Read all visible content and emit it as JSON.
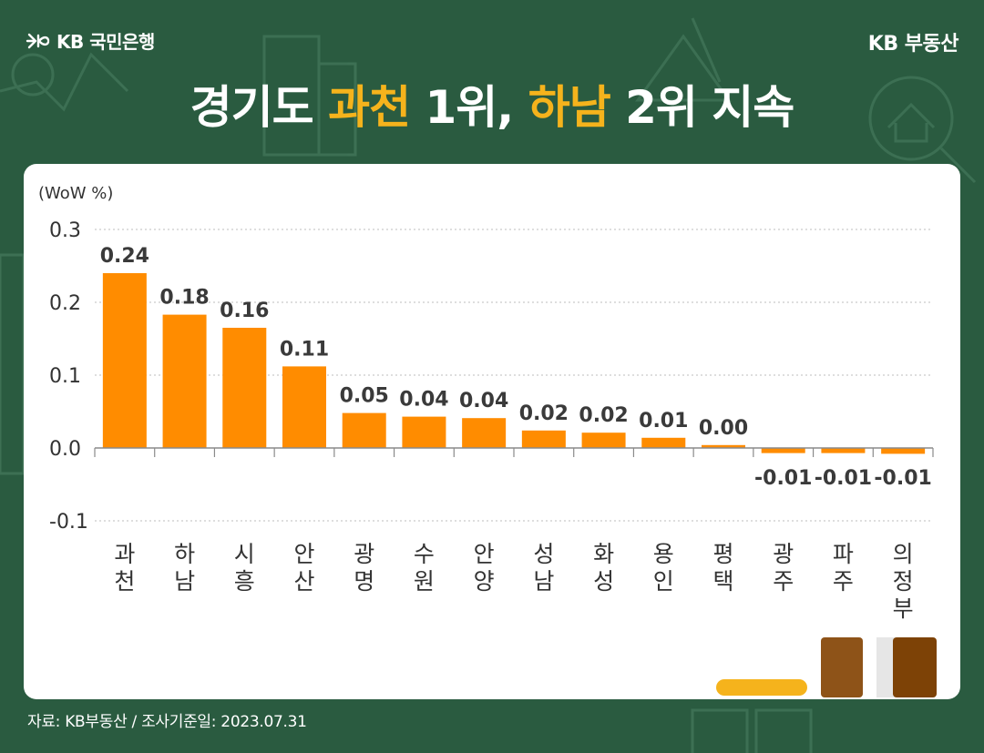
{
  "header": {
    "logo_text": "KB 국민은행",
    "brand": "KB 부동산"
  },
  "title": {
    "part1": "경기도 ",
    "hl1": "과천",
    "part2": " 1위, ",
    "hl2": "하남",
    "part3": " 2위 지속"
  },
  "colors": {
    "background": "#2a5b40",
    "highlight": "#f5b31c",
    "bar": "#ff8c00",
    "card": "#ffffff"
  },
  "source": "자료: KB부동산 / 조사기준일: 2023.07.31",
  "chart_data": {
    "type": "bar",
    "ylabel": "(WoW %)",
    "ylim": [
      -0.1,
      0.3
    ],
    "yticks": [
      "0.3",
      "0.2",
      "0.1",
      "0.0",
      "-0.1"
    ],
    "grid": true,
    "categories": [
      "과천",
      "하남",
      "시흥",
      "안산",
      "광명",
      "수원",
      "안양",
      "성남",
      "화성",
      "용인",
      "평택",
      "광주",
      "파주",
      "의정부"
    ],
    "values": [
      0.24,
      0.183,
      0.165,
      0.112,
      0.048,
      0.043,
      0.041,
      0.024,
      0.021,
      0.014,
      0.004,
      -0.007,
      -0.007,
      -0.008
    ],
    "data_labels": [
      "0.24",
      "0.18",
      "0.16",
      "0.11",
      "0.05",
      "0.04",
      "0.04",
      "0.02",
      "0.02",
      "0.01",
      "0.00",
      "-0.01",
      "-0.01",
      "-0.01"
    ]
  }
}
